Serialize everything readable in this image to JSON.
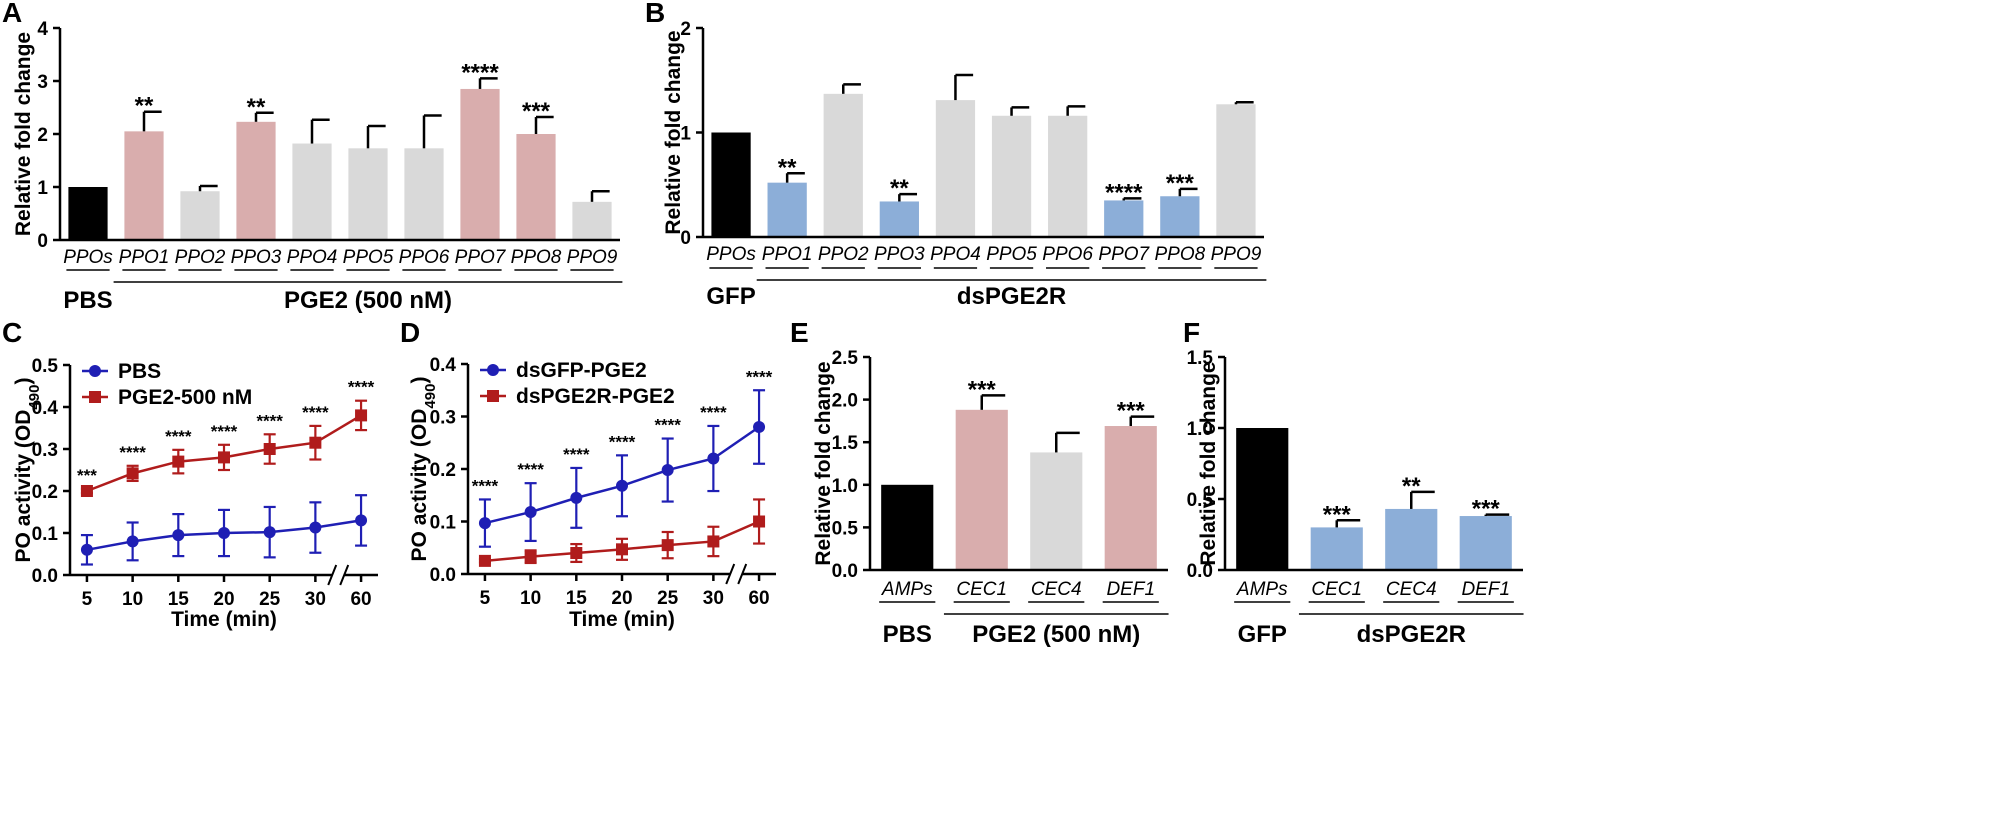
{
  "colors": {
    "black": "#000000",
    "pink": "#d9adad",
    "gray": "#d9d9d9",
    "blue": "#8caed8",
    "line_blue": "#1f1fb4",
    "line_red": "#b01c1c"
  },
  "chart_data": [
    {
      "id": "A",
      "letter": "A",
      "type": "bar",
      "ylabel": "Relative fold change",
      "ylim": [
        0,
        4
      ],
      "yticks": [
        "0",
        "1",
        "2",
        "3",
        "4"
      ],
      "categories": [
        "PPOs",
        "PPO1",
        "PPO2",
        "PPO3",
        "PPO4",
        "PPO5",
        "PPO6",
        "PPO7",
        "PPO8",
        "PPO9"
      ],
      "values": [
        1.0,
        2.05,
        0.92,
        2.23,
        1.82,
        1.73,
        1.73,
        2.85,
        2.0,
        0.72
      ],
      "errors": [
        0,
        0.37,
        0.1,
        0.17,
        0.45,
        0.42,
        0.62,
        0.2,
        0.32,
        0.2
      ],
      "colors": [
        "#000000",
        "#d9adad",
        "#d9d9d9",
        "#d9adad",
        "#d9d9d9",
        "#d9d9d9",
        "#d9d9d9",
        "#d9adad",
        "#d9adad",
        "#d9d9d9"
      ],
      "significance": [
        "",
        "**",
        "",
        "**",
        "",
        "",
        "",
        "****",
        "***",
        ""
      ],
      "groups": [
        {
          "label": "PBS",
          "from": 0,
          "to": 0
        },
        {
          "label": "PGE2 (500 nM)",
          "from": 1,
          "to": 9
        }
      ]
    },
    {
      "id": "B",
      "letter": "B",
      "type": "bar",
      "ylabel": "Relative fold change",
      "ylim": [
        0,
        2
      ],
      "yticks": [
        "0",
        "1",
        "2"
      ],
      "categories": [
        "PPOs",
        "PPO1",
        "PPO2",
        "PPO3",
        "PPO4",
        "PPO5",
        "PPO6",
        "PPO7",
        "PPO8",
        "PPO9"
      ],
      "values": [
        1.0,
        0.52,
        1.37,
        0.34,
        1.31,
        1.16,
        1.16,
        0.35,
        0.39,
        1.27
      ],
      "errors": [
        0,
        0.09,
        0.09,
        0.07,
        0.24,
        0.08,
        0.09,
        0.02,
        0.07,
        0.02
      ],
      "colors": [
        "#000000",
        "#8caed8",
        "#d9d9d9",
        "#8caed8",
        "#d9d9d9",
        "#d9d9d9",
        "#d9d9d9",
        "#8caed8",
        "#8caed8",
        "#d9d9d9"
      ],
      "significance": [
        "",
        "**",
        "",
        "**",
        "",
        "",
        "",
        "****",
        "***",
        ""
      ],
      "groups": [
        {
          "label": "GFP",
          "from": 0,
          "to": 0
        },
        {
          "label": "dsPGE2R",
          "from": 1,
          "to": 9
        }
      ]
    },
    {
      "id": "C",
      "letter": "C",
      "type": "line",
      "ylabel": "PO activity (OD",
      "ylabel_sub": "490",
      "ylabel_end": ")",
      "xlabel": "Time (min)",
      "ylim": [
        0,
        0.5
      ],
      "yticks": [
        "0.0",
        "0.1",
        "0.2",
        "0.3",
        "0.4",
        "0.5"
      ],
      "x": [
        "5",
        "10",
        "15",
        "20",
        "25",
        "30",
        "60"
      ],
      "series": [
        {
          "name": "PBS",
          "color": "#1f1fb4",
          "marker": "circle",
          "values": [
            0.06,
            0.08,
            0.095,
            0.1,
            0.102,
            0.113,
            0.13
          ],
          "errors": [
            0.035,
            0.045,
            0.05,
            0.055,
            0.06,
            0.06,
            0.06
          ]
        },
        {
          "name": "PGE2-500 nM",
          "color": "#b01c1c",
          "marker": "square",
          "values": [
            0.2,
            0.242,
            0.27,
            0.28,
            0.3,
            0.315,
            0.38
          ],
          "errors": [
            0.005,
            0.018,
            0.028,
            0.03,
            0.035,
            0.04,
            0.035
          ]
        }
      ],
      "significance": [
        "***",
        "****",
        "****",
        "****",
        "****",
        "****",
        "****"
      ]
    },
    {
      "id": "D",
      "letter": "D",
      "type": "line",
      "ylabel": "PO activity (OD",
      "ylabel_sub": "490",
      "ylabel_end": ")",
      "xlabel": "Time (min)",
      "ylim": [
        0,
        0.4
      ],
      "yticks": [
        "0.0",
        "0.1",
        "0.2",
        "0.3",
        "0.4"
      ],
      "x": [
        "5",
        "10",
        "15",
        "20",
        "25",
        "30",
        "60"
      ],
      "series": [
        {
          "name": "dsGFP-PGE2",
          "color": "#1f1fb4",
          "marker": "circle",
          "values": [
            0.097,
            0.118,
            0.145,
            0.168,
            0.198,
            0.22,
            0.28
          ],
          "errors": [
            0.045,
            0.055,
            0.057,
            0.058,
            0.06,
            0.062,
            0.07
          ]
        },
        {
          "name": "dsPGE2R-PGE2",
          "color": "#b01c1c",
          "marker": "square",
          "values": [
            0.025,
            0.033,
            0.04,
            0.047,
            0.055,
            0.062,
            0.1
          ],
          "errors": [
            0.003,
            0.012,
            0.017,
            0.02,
            0.025,
            0.028,
            0.042
          ]
        }
      ],
      "significance": [
        "****",
        "****",
        "****",
        "****",
        "****",
        "****",
        "****"
      ]
    },
    {
      "id": "E",
      "letter": "E",
      "type": "bar",
      "ylabel": "Relative fold change",
      "ylim": [
        0,
        2.5
      ],
      "yticks": [
        "0.0",
        "0.5",
        "1.0",
        "1.5",
        "2.0",
        "2.5"
      ],
      "categories": [
        "AMPs",
        "CEC1",
        "CEC4",
        "DEF1"
      ],
      "values": [
        1.0,
        1.88,
        1.38,
        1.69
      ],
      "errors": [
        0,
        0.17,
        0.23,
        0.11
      ],
      "colors": [
        "#000000",
        "#d9adad",
        "#d9d9d9",
        "#d9adad"
      ],
      "significance": [
        "",
        "***",
        "",
        "***"
      ],
      "groups": [
        {
          "label": "PBS",
          "from": 0,
          "to": 0
        },
        {
          "label": "PGE2 (500 nM)",
          "from": 1,
          "to": 3
        }
      ]
    },
    {
      "id": "F",
      "letter": "F",
      "type": "bar",
      "ylabel": "Relative fold change",
      "ylim": [
        0,
        1.5
      ],
      "yticks": [
        "0.0",
        "0.5",
        "1.0",
        "1.5"
      ],
      "categories": [
        "AMPs",
        "CEC1",
        "CEC4",
        "DEF1"
      ],
      "values": [
        1.0,
        0.3,
        0.43,
        0.38
      ],
      "errors": [
        0,
        0.05,
        0.12,
        0.01
      ],
      "colors": [
        "#000000",
        "#8caed8",
        "#8caed8",
        "#8caed8"
      ],
      "significance": [
        "",
        "***",
        "**",
        "***"
      ],
      "groups": [
        {
          "label": "GFP",
          "from": 0,
          "to": 0
        },
        {
          "label": "dsPGE2R",
          "from": 1,
          "to": 3
        }
      ]
    }
  ]
}
